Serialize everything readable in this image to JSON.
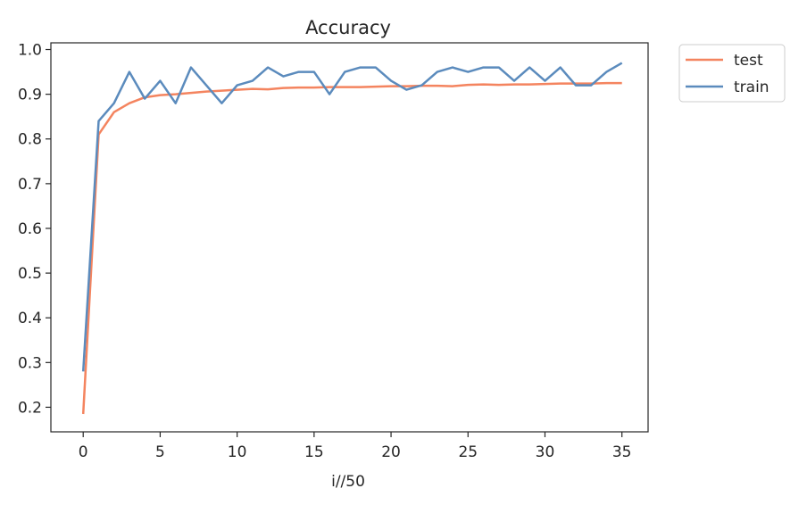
{
  "chart_data": {
    "type": "line",
    "title": "Accuracy",
    "xlabel": "i//50",
    "ylabel": "",
    "xlim": [
      -2.1,
      36.7
    ],
    "ylim": [
      0.145,
      1.015
    ],
    "xticks": [
      0,
      5,
      10,
      15,
      20,
      25,
      30,
      35
    ],
    "yticks": [
      0.2,
      0.3,
      0.4,
      0.5,
      0.6,
      0.7,
      0.8,
      0.9,
      1.0
    ],
    "ytick_labels": [
      "0.2",
      "0.3",
      "0.4",
      "0.5",
      "0.6",
      "0.7",
      "0.8",
      "0.9",
      "1.0"
    ],
    "x": [
      0,
      1,
      2,
      3,
      4,
      5,
      6,
      7,
      8,
      9,
      10,
      11,
      12,
      13,
      14,
      15,
      16,
      17,
      18,
      19,
      20,
      21,
      22,
      23,
      24,
      25,
      26,
      27,
      28,
      29,
      30,
      31,
      32,
      33,
      34,
      35
    ],
    "grid": false,
    "legend_position": "outside-top-right",
    "series": [
      {
        "name": "test",
        "color": "#f4845f",
        "values": [
          0.185,
          0.81,
          0.86,
          0.88,
          0.893,
          0.898,
          0.9,
          0.903,
          0.906,
          0.908,
          0.91,
          0.912,
          0.911,
          0.914,
          0.915,
          0.915,
          0.916,
          0.916,
          0.916,
          0.917,
          0.918,
          0.918,
          0.919,
          0.919,
          0.918,
          0.921,
          0.922,
          0.921,
          0.922,
          0.922,
          0.923,
          0.924,
          0.924,
          0.924,
          0.925,
          0.925
        ]
      },
      {
        "name": "train",
        "color": "#5b8bbd",
        "values": [
          0.28,
          0.84,
          0.88,
          0.95,
          0.89,
          0.93,
          0.88,
          0.96,
          0.92,
          0.88,
          0.92,
          0.93,
          0.96,
          0.94,
          0.95,
          0.95,
          0.9,
          0.95,
          0.96,
          0.96,
          0.93,
          0.91,
          0.92,
          0.95,
          0.96,
          0.95,
          0.96,
          0.96,
          0.93,
          0.96,
          0.93,
          0.96,
          0.92,
          0.92,
          0.95,
          0.97
        ]
      }
    ]
  }
}
